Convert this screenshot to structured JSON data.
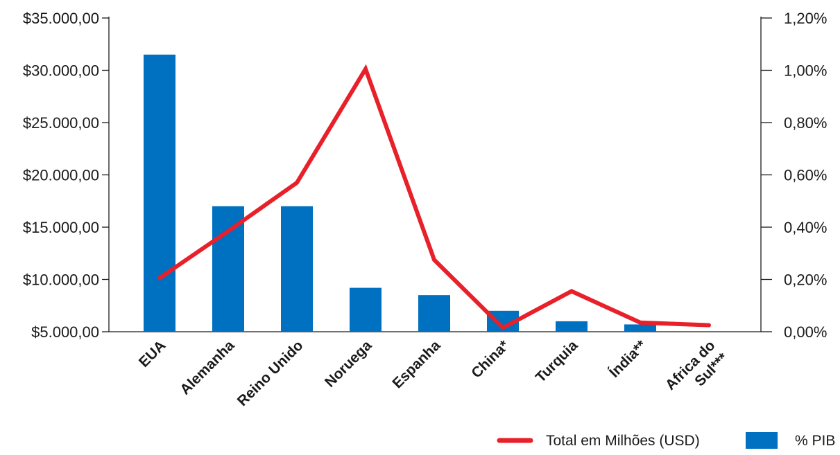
{
  "chart_data": {
    "type": "bar",
    "categories": [
      "EUA",
      "Alemanha",
      "Reino Unido",
      "Noruega",
      "Espanha",
      "China*",
      "Turquia",
      "Índia**",
      "Africa do Sul***"
    ],
    "left_axis": {
      "ylim": [
        5000,
        35000
      ],
      "ticks": [
        5000,
        10000,
        15000,
        20000,
        25000,
        30000,
        35000
      ],
      "tick_labels": [
        "$5.000,00",
        "$10.000,00",
        "$15.000,00",
        "$20.000,00",
        "$25.000,00",
        "$30.000,00",
        "$35.000,00"
      ]
    },
    "right_axis": {
      "ylim": [
        0,
        1.2
      ],
      "ticks": [
        0,
        0.2,
        0.4,
        0.6,
        0.8,
        1.0,
        1.2
      ],
      "tick_labels": [
        "0,00%",
        "0,20%",
        "0,40%",
        "0,60%",
        "0,80%",
        "1,00%",
        "1,20%"
      ]
    },
    "series": [
      {
        "name": "% PIB",
        "type": "bar",
        "axis": "left",
        "color": "#0070c0",
        "values": [
          31500,
          17000,
          17000,
          9200,
          8500,
          7000,
          6000,
          5700,
          null
        ]
      },
      {
        "name": "Total em Milhões (USD)",
        "type": "line",
        "axis": "right",
        "color": "#e8202a",
        "values": [
          0.205,
          0.385,
          0.57,
          1.005,
          0.275,
          0.015,
          0.155,
          0.035,
          0.025
        ]
      }
    ],
    "legend": {
      "position": "bottom-right",
      "items": [
        {
          "label": "Total em Milhões (USD)",
          "marker": "line",
          "color": "#e8202a"
        },
        {
          "label": "% PIB",
          "marker": "box",
          "color": "#0070c0"
        }
      ]
    },
    "grid": false
  }
}
